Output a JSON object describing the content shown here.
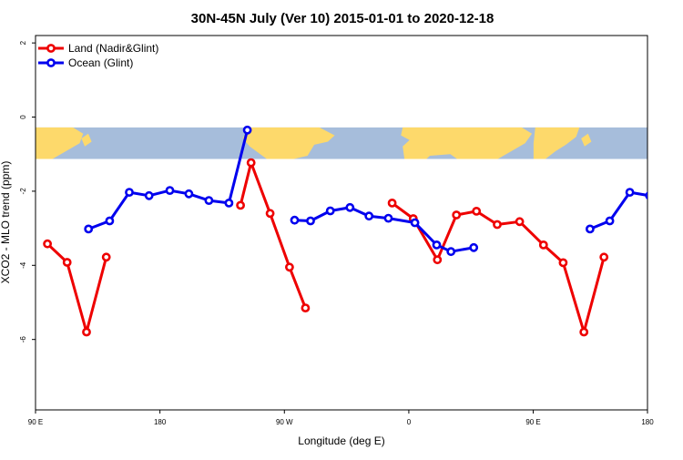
{
  "chart_data": {
    "type": "line",
    "title": "30N-45N July (Ver 10)   2015-01-01 to 2020-12-18",
    "xlabel": "Longitude (deg E)",
    "ylabel": "XCO2 - MLO trend (ppm)",
    "xlim": [
      90,
      270
    ],
    "ylim": [
      -7.9,
      2.2
    ],
    "x_ticks": [
      {
        "value": 90,
        "label": "90 E"
      },
      {
        "value": 126.6,
        "label": "180"
      },
      {
        "value": 163.2,
        "label": "90 W"
      },
      {
        "value": 199.8,
        "label": "0"
      },
      {
        "value": 236.4,
        "label": "90 E"
      },
      {
        "value": 270,
        "label": "180"
      }
    ],
    "y_ticks": [
      {
        "value": 2,
        "label": "2"
      },
      {
        "value": 0,
        "label": "0"
      },
      {
        "value": -2,
        "label": "-2"
      },
      {
        "value": -4,
        "label": "-4"
      },
      {
        "value": -6,
        "label": "-6"
      }
    ],
    "grid": false,
    "legend_position": "top-left",
    "map_band": {
      "y_top": -0.28,
      "y_bottom": -1.13,
      "ocean_color": "#a6bddb",
      "land_color": "#fdd96b"
    },
    "series": [
      {
        "name": "Land (Nadir&Glint)",
        "color": "#ee0000",
        "segments": [
          [
            [
              93.5,
              -3.42
            ],
            [
              99.3,
              -3.92
            ],
            [
              105.0,
              -5.8
            ],
            [
              110.8,
              -3.78
            ]
          ],
          [
            [
              150.3,
              -2.38
            ],
            [
              153.4,
              -1.23
            ],
            [
              159.0,
              -2.6
            ],
            [
              164.7,
              -4.05
            ],
            [
              169.4,
              -5.15
            ]
          ],
          [
            [
              194.9,
              -2.32
            ],
            [
              201.1,
              -2.74
            ],
            [
              208.2,
              -3.85
            ],
            [
              213.8,
              -2.64
            ],
            [
              219.7,
              -2.54
            ],
            [
              225.8,
              -2.9
            ],
            [
              232.4,
              -2.82
            ],
            [
              239.4,
              -3.45
            ],
            [
              245.2,
              -3.93
            ],
            [
              251.3,
              -5.8
            ],
            [
              257.2,
              -3.78
            ]
          ]
        ]
      },
      {
        "name": "Ocean (Glint)",
        "color": "#0000ee",
        "segments": [
          [
            [
              105.6,
              -3.02
            ],
            [
              111.8,
              -2.8
            ],
            [
              117.6,
              -2.03
            ],
            [
              123.4,
              -2.12
            ],
            [
              129.5,
              -1.98
            ],
            [
              135.1,
              -2.07
            ],
            [
              141.0,
              -2.25
            ],
            [
              146.9,
              -2.32
            ],
            [
              152.3,
              -0.35
            ]
          ],
          [
            [
              166.2,
              -2.78
            ],
            [
              170.9,
              -2.8
            ],
            [
              176.7,
              -2.53
            ],
            [
              182.5,
              -2.44
            ],
            [
              188.1,
              -2.67
            ],
            [
              193.8,
              -2.73
            ],
            [
              201.6,
              -2.85
            ],
            [
              208.0,
              -3.45
            ],
            [
              212.2,
              -3.63
            ],
            [
              218.9,
              -3.52
            ]
          ],
          [
            [
              253.1,
              -3.02
            ],
            [
              258.9,
              -2.8
            ],
            [
              264.8,
              -2.03
            ],
            [
              270.6,
              -2.12
            ]
          ]
        ]
      }
    ]
  }
}
